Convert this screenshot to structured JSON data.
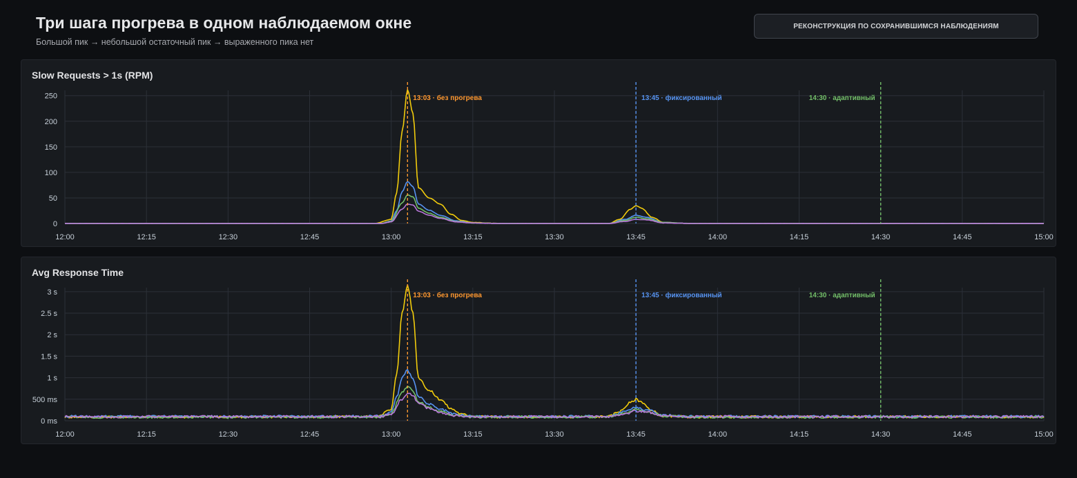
{
  "header": {
    "title": "Три шага прогрева в одном наблюдаемом окне",
    "subtitle": "Большой пик → небольшой остаточный пик → выраженного пика нет",
    "badge": "РЕКОНСТРУКЦИЯ ПО СОХРАНИВШИМСЯ НАБЛЮДЕНИЯМ"
  },
  "colors": {
    "yellow": "#f2cc0c",
    "blue": "#5794f2",
    "green": "#73bf69",
    "purple": "#b877d9",
    "orange": "#ff9830",
    "grid": "#2c3038",
    "tick": "#c7d0d9"
  },
  "chart_data": [
    {
      "type": "line",
      "title": "Slow Requests > 1s (RPM)",
      "x_ticks": [
        "12:00",
        "12:15",
        "12:30",
        "12:45",
        "13:00",
        "13:15",
        "13:30",
        "13:45",
        "14:00",
        "14:15",
        "14:30",
        "14:45",
        "15:00"
      ],
      "xlim": [
        "12:00",
        "15:00"
      ],
      "y_ticks": [
        0,
        50,
        100,
        150,
        200,
        250
      ],
      "y_tick_labels": [
        "0",
        "50",
        "100",
        "150",
        "200",
        "250"
      ],
      "ylim": [
        0,
        255
      ],
      "grid": true,
      "annotations": [
        {
          "x": "13:03",
          "label": "13:03 · без прогрева",
          "color": "#ff9830",
          "label_side": "right"
        },
        {
          "x": "13:45",
          "label": "13:45 · фиксированный",
          "color": "#5794f2",
          "label_side": "right"
        },
        {
          "x": "14:30",
          "label": "14:30 · адаптивный",
          "color": "#73bf69",
          "label_side": "left"
        }
      ],
      "series": [
        {
          "color": "#f2cc0c",
          "x": [
            "12:00",
            "12:45",
            "12:57",
            "13:00",
            "13:01",
            "13:02",
            "13:03",
            "13:04",
            "13:05",
            "13:07",
            "13:09",
            "13:11",
            "13:13",
            "13:15",
            "13:20",
            "13:35",
            "13:40",
            "13:42",
            "13:44",
            "13:45",
            "13:46",
            "13:48",
            "13:50",
            "13:55",
            "14:30",
            "15:00"
          ],
          "values": [
            0,
            0,
            0,
            8,
            60,
            180,
            262,
            215,
            70,
            50,
            38,
            18,
            6,
            2,
            0,
            0,
            0,
            8,
            28,
            35,
            30,
            12,
            2,
            0,
            0,
            0
          ]
        },
        {
          "color": "#5794f2",
          "x": [
            "12:00",
            "12:45",
            "12:58",
            "13:00",
            "13:01",
            "13:02",
            "13:03",
            "13:04",
            "13:05",
            "13:07",
            "13:09",
            "13:12",
            "13:15",
            "13:20",
            "13:40",
            "13:43",
            "13:45",
            "13:47",
            "13:50",
            "13:55",
            "15:00"
          ],
          "values": [
            0,
            0,
            0,
            5,
            25,
            62,
            82,
            72,
            38,
            26,
            16,
            5,
            1,
            0,
            0,
            8,
            16,
            12,
            2,
            0,
            0
          ]
        },
        {
          "color": "#73bf69",
          "x": [
            "12:00",
            "12:45",
            "12:58",
            "13:00",
            "13:02",
            "13:03",
            "13:04",
            "13:05",
            "13:07",
            "13:09",
            "13:12",
            "13:15",
            "13:20",
            "13:40",
            "13:43",
            "13:45",
            "13:47",
            "13:50",
            "13:55",
            "15:00"
          ],
          "values": [
            0,
            0,
            0,
            4,
            40,
            56,
            52,
            30,
            20,
            12,
            4,
            1,
            0,
            0,
            6,
            12,
            9,
            2,
            0,
            0
          ]
        },
        {
          "color": "#b877d9",
          "x": [
            "12:00",
            "12:45",
            "12:58",
            "13:00",
            "13:02",
            "13:03",
            "13:04",
            "13:05",
            "13:07",
            "13:09",
            "13:12",
            "13:15",
            "13:20",
            "13:40",
            "13:43",
            "13:45",
            "13:47",
            "13:50",
            "13:55",
            "15:00"
          ],
          "values": [
            0,
            0,
            0,
            3,
            28,
            38,
            36,
            24,
            16,
            10,
            3,
            1,
            0,
            0,
            4,
            8,
            7,
            1,
            0,
            0
          ]
        }
      ]
    },
    {
      "type": "line",
      "title": "Avg Response Time",
      "x_ticks": [
        "12:00",
        "12:15",
        "12:30",
        "12:45",
        "13:00",
        "13:15",
        "13:30",
        "13:45",
        "14:00",
        "14:15",
        "14:30",
        "14:45",
        "15:00"
      ],
      "xlim": [
        "12:00",
        "15:00"
      ],
      "y_ticks": [
        0,
        500,
        1000,
        1500,
        2000,
        2500,
        3000
      ],
      "y_tick_labels": [
        "0 ms",
        "500 ms",
        "1 s",
        "1.5 s",
        "2 s",
        "2.5 s",
        "3 s"
      ],
      "ylim": [
        0,
        3030
      ],
      "unit": "ms",
      "grid": true,
      "annotations": [
        {
          "x": "13:03",
          "label": "13:03 · без прогрева",
          "color": "#ff9830",
          "label_side": "right"
        },
        {
          "x": "13:45",
          "label": "13:45 · фиксированный",
          "color": "#5794f2",
          "label_side": "right"
        },
        {
          "x": "14:30",
          "label": "14:30 · адаптивный",
          "color": "#73bf69",
          "label_side": "left"
        }
      ],
      "series": [
        {
          "color": "#f2cc0c",
          "x": [
            "12:00",
            "12:45",
            "12:57",
            "13:00",
            "13:01",
            "13:02",
            "13:03",
            "13:04",
            "13:05",
            "13:07",
            "13:09",
            "13:11",
            "13:13",
            "13:15",
            "13:20",
            "13:35",
            "13:40",
            "13:42",
            "13:44",
            "13:45",
            "13:46",
            "13:48",
            "13:50",
            "13:55",
            "14:30",
            "15:00"
          ],
          "values": [
            90,
            90,
            100,
            250,
            1100,
            2500,
            3150,
            2500,
            1000,
            700,
            500,
            280,
            150,
            110,
            90,
            90,
            100,
            220,
            420,
            500,
            440,
            220,
            110,
            90,
            95,
            90
          ]
        },
        {
          "color": "#5794f2",
          "x": [
            "12:00",
            "12:45",
            "12:58",
            "13:00",
            "13:01",
            "13:02",
            "13:03",
            "13:04",
            "13:05",
            "13:07",
            "13:09",
            "13:12",
            "13:15",
            "13:20",
            "13:40",
            "13:43",
            "13:45",
            "13:47",
            "13:50",
            "13:55",
            "15:00"
          ],
          "values": [
            100,
            100,
            105,
            200,
            550,
            1000,
            1170,
            1000,
            550,
            380,
            260,
            140,
            100,
            95,
            100,
            220,
            310,
            250,
            130,
            100,
            100
          ]
        },
        {
          "color": "#73bf69",
          "x": [
            "12:00",
            "12:45",
            "12:58",
            "13:00",
            "13:02",
            "13:03",
            "13:04",
            "13:05",
            "13:07",
            "13:09",
            "13:12",
            "13:15",
            "13:20",
            "13:40",
            "13:43",
            "13:45",
            "13:47",
            "13:50",
            "13:55",
            "15:00"
          ],
          "values": [
            85,
            85,
            90,
            160,
            650,
            790,
            700,
            450,
            300,
            210,
            120,
            90,
            85,
            90,
            180,
            260,
            220,
            110,
            85,
            85
          ]
        },
        {
          "color": "#b877d9",
          "x": [
            "12:00",
            "12:45",
            "12:58",
            "13:00",
            "13:02",
            "13:03",
            "13:04",
            "13:05",
            "13:07",
            "13:09",
            "13:12",
            "13:15",
            "13:20",
            "13:40",
            "13:43",
            "13:45",
            "13:47",
            "13:50",
            "13:55",
            "15:00"
          ],
          "values": [
            95,
            95,
            100,
            150,
            500,
            640,
            600,
            400,
            280,
            190,
            120,
            95,
            95,
            95,
            170,
            230,
            200,
            110,
            95,
            95
          ]
        }
      ]
    }
  ]
}
